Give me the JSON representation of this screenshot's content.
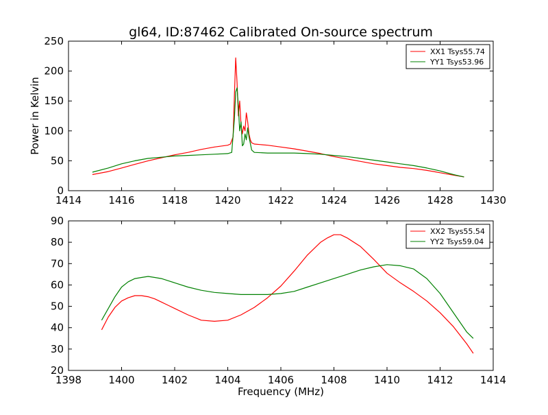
{
  "chart_data": [
    {
      "type": "line",
      "title": "gl64, ID:87462 Calibrated On-source spectrum",
      "xlabel": "",
      "ylabel": "Power in Kelvin",
      "xlim": [
        1414,
        1430
      ],
      "ylim": [
        0,
        250
      ],
      "xticks": [
        "1414",
        "1416",
        "1418",
        "1420",
        "1422",
        "1424",
        "1426",
        "1428",
        "1430"
      ],
      "yticks": [
        "0",
        "50",
        "100",
        "150",
        "200",
        "250"
      ],
      "grid": false,
      "legend_position": "top-right",
      "series": [
        {
          "name": "XX1 Tsys55.74",
          "color": "#ff0000",
          "x": [
            1414.9,
            1415.5,
            1416.0,
            1416.5,
            1417.0,
            1417.5,
            1418.0,
            1418.5,
            1419.0,
            1419.5,
            1420.0,
            1420.1,
            1420.2,
            1420.25,
            1420.3,
            1420.35,
            1420.4,
            1420.45,
            1420.5,
            1420.55,
            1420.6,
            1420.65,
            1420.7,
            1420.75,
            1420.8,
            1420.85,
            1420.9,
            1421.0,
            1421.5,
            1422.0,
            1422.5,
            1423.0,
            1423.5,
            1424.0,
            1424.5,
            1425.0,
            1425.5,
            1426.0,
            1426.5,
            1427.0,
            1427.5,
            1428.0,
            1428.5,
            1428.9
          ],
          "y": [
            27,
            32,
            38,
            44,
            50,
            55,
            60,
            64,
            69,
            73,
            76,
            78,
            90,
            160,
            222,
            180,
            125,
            150,
            110,
            95,
            108,
            100,
            130,
            115,
            95,
            85,
            80,
            78,
            76,
            73,
            70,
            66,
            62,
            57,
            53,
            49,
            45,
            42,
            39,
            37,
            34,
            30,
            26,
            23
          ]
        },
        {
          "name": "YY1 Tsys53.96",
          "color": "#008000",
          "x": [
            1414.9,
            1415.5,
            1416.0,
            1416.5,
            1417.0,
            1417.5,
            1418.0,
            1418.5,
            1419.0,
            1419.5,
            1420.0,
            1420.15,
            1420.25,
            1420.3,
            1420.35,
            1420.4,
            1420.45,
            1420.5,
            1420.55,
            1420.6,
            1420.65,
            1420.7,
            1420.75,
            1420.8,
            1420.9,
            1421.0,
            1421.5,
            1422.0,
            1422.5,
            1423.0,
            1423.5,
            1424.0,
            1424.5,
            1425.0,
            1425.5,
            1426.0,
            1426.5,
            1427.0,
            1427.5,
            1428.0,
            1428.5,
            1428.9
          ],
          "y": [
            31,
            38,
            45,
            50,
            54,
            56,
            58,
            59,
            60,
            61,
            62,
            64,
            120,
            165,
            172,
            140,
            100,
            115,
            75,
            78,
            95,
            85,
            105,
            90,
            68,
            64,
            63,
            63,
            63,
            62,
            61,
            59,
            57,
            54,
            51,
            48,
            45,
            42,
            38,
            33,
            27,
            23
          ]
        }
      ]
    },
    {
      "type": "line",
      "title": "",
      "xlabel": "Frequency (MHz)",
      "ylabel": "",
      "xlim": [
        1398,
        1414
      ],
      "ylim": [
        20,
        90
      ],
      "xticks": [
        "1398",
        "1400",
        "1402",
        "1404",
        "1406",
        "1408",
        "1410",
        "1412",
        "1414"
      ],
      "yticks": [
        "20",
        "30",
        "40",
        "50",
        "60",
        "70",
        "80",
        "90"
      ],
      "grid": false,
      "legend_position": "top-right",
      "series": [
        {
          "name": "XX2 Tsys55.54",
          "color": "#ff0000",
          "x": [
            1399.25,
            1399.5,
            1399.75,
            1400.0,
            1400.25,
            1400.5,
            1400.75,
            1401.0,
            1401.25,
            1401.5,
            1401.75,
            1402.0,
            1402.5,
            1403.0,
            1403.5,
            1404.0,
            1404.5,
            1405.0,
            1405.5,
            1406.0,
            1406.5,
            1407.0,
            1407.5,
            1407.75,
            1408.0,
            1408.25,
            1408.5,
            1409.0,
            1409.5,
            1410.0,
            1410.5,
            1411.0,
            1411.5,
            1412.0,
            1412.5,
            1413.0,
            1413.25
          ],
          "y": [
            39,
            45,
            49.5,
            52.5,
            54,
            55,
            55,
            54.5,
            53.5,
            52,
            50.5,
            49,
            46,
            43.5,
            43,
            43.5,
            46,
            49.5,
            54,
            59.5,
            66.5,
            74,
            80,
            82,
            83.5,
            83.5,
            82,
            78,
            72,
            65.5,
            61,
            57,
            52.5,
            47,
            40.5,
            32.5,
            28
          ]
        },
        {
          "name": "YY2 Tsys59.04",
          "color": "#008000",
          "x": [
            1399.25,
            1399.5,
            1399.75,
            1400.0,
            1400.25,
            1400.5,
            1400.75,
            1401.0,
            1401.25,
            1401.5,
            1401.75,
            1402.0,
            1402.5,
            1403.0,
            1403.5,
            1404.0,
            1404.5,
            1405.0,
            1405.5,
            1406.0,
            1406.5,
            1407.0,
            1407.5,
            1408.0,
            1408.5,
            1409.0,
            1409.5,
            1410.0,
            1410.5,
            1411.0,
            1411.5,
            1412.0,
            1412.5,
            1413.0,
            1413.25
          ],
          "y": [
            43.5,
            49,
            54.5,
            59,
            61.5,
            63,
            63.5,
            64,
            63.5,
            63,
            62,
            61,
            59,
            57.5,
            56.5,
            56,
            55.5,
            55.5,
            55.5,
            56,
            57,
            59,
            61,
            63,
            65,
            67,
            68.5,
            69.5,
            69,
            67.5,
            63,
            56,
            47,
            38,
            35
          ]
        }
      ]
    }
  ]
}
